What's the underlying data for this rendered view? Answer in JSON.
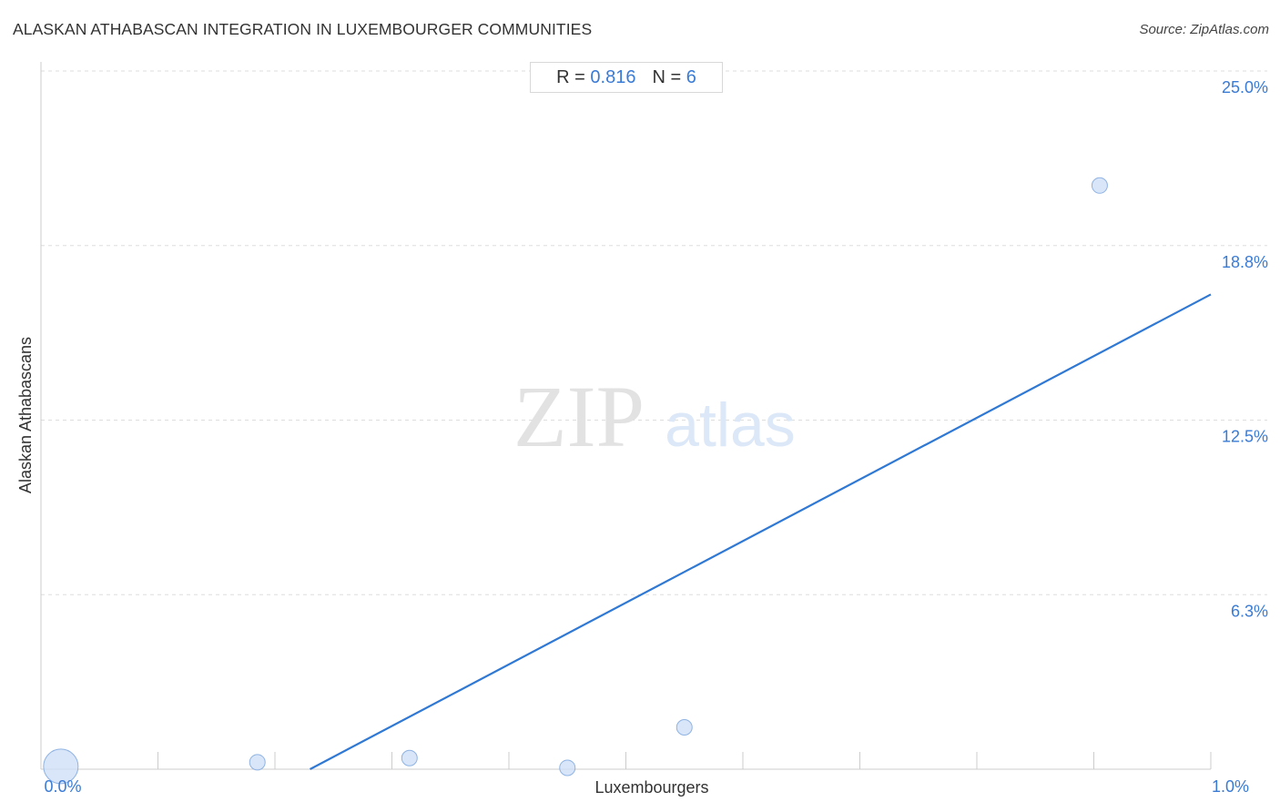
{
  "header": {
    "title": "ALASKAN ATHABASCAN INTEGRATION IN LUXEMBOURGER COMMUNITIES",
    "source": "Source: ZipAtlas.com"
  },
  "stats": {
    "r_label": "R =",
    "r_value": "0.816",
    "n_label": "N =",
    "n_value": "6"
  },
  "watermark": {
    "zip": "ZIP",
    "atlas": "atlas"
  },
  "colors": {
    "accent": "#3a7bd5",
    "trend_line": "#2f78d4",
    "point_fill": "#cfe0f7",
    "point_stroke": "#8fb3e3",
    "grid": "#dddddd"
  },
  "chart_data": {
    "type": "scatter",
    "xlabel": "Luxembourgers",
    "ylabel": "Alaskan Athabascans",
    "xlim": [
      0,
      1.0
    ],
    "ylim": [
      0,
      25.0
    ],
    "x_tick_labels": [
      "0.0%",
      "1.0%"
    ],
    "y_tick_labels": [
      "6.3%",
      "12.5%",
      "18.8%",
      "25.0%"
    ],
    "y_ticks": [
      6.25,
      12.5,
      18.75,
      25.0
    ],
    "x_minor_ticks": [
      0.1,
      0.2,
      0.3,
      0.4,
      0.5,
      0.6,
      0.7,
      0.8,
      0.9,
      1.0
    ],
    "grid": true,
    "points": [
      {
        "x": 0.017,
        "y": 0.1,
        "size": "large"
      },
      {
        "x": 0.185,
        "y": 0.25,
        "size": "small"
      },
      {
        "x": 0.315,
        "y": 0.4,
        "size": "small"
      },
      {
        "x": 0.45,
        "y": 0.05,
        "size": "small"
      },
      {
        "x": 0.55,
        "y": 1.5,
        "size": "small"
      },
      {
        "x": 0.905,
        "y": 20.9,
        "size": "small"
      }
    ],
    "trend_line": {
      "x": [
        0.23,
        1.0
      ],
      "y": [
        0.0,
        17.0
      ]
    },
    "r": 0.816,
    "n": 6
  }
}
